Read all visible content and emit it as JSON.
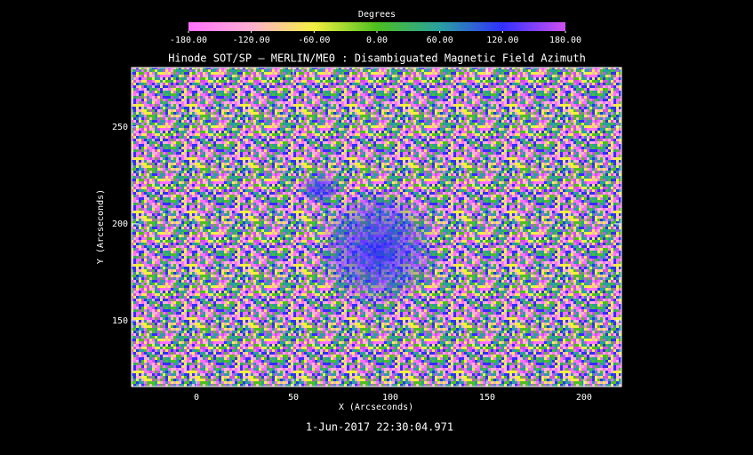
{
  "chart_data": {
    "type": "image",
    "title": "Hinode SOT/SP — MERLIN/ME0 : Disambiguated Magnetic Field Azimuth",
    "xlabel": "X (Arcseconds)",
    "ylabel": "Y (Arcseconds)",
    "xlim": [
      -33.5,
      219.3
    ],
    "ylim": [
      116,
      280.7
    ],
    "xticks": [
      0,
      50,
      100,
      150,
      200
    ],
    "yticks": [
      150,
      200,
      250
    ],
    "timestamp": "1-Jun-2017 22:30:04.971",
    "colorbar": {
      "title": "Degrees",
      "lim": [
        -180,
        180
      ],
      "ticks": [
        {
          "value": -180,
          "label": "-180.00"
        },
        {
          "value": -120,
          "label": "-120.00"
        },
        {
          "value": -60,
          "label": "-60.00"
        },
        {
          "value": 0,
          "label": "0.00"
        },
        {
          "value": 60,
          "label": "60.00"
        },
        {
          "value": 120,
          "label": "120.00"
        },
        {
          "value": 180,
          "label": "180.00"
        }
      ],
      "colormap": [
        "#ff70ff",
        "#ffb0d0",
        "#f4f040",
        "#4cc020",
        "#2aa0a0",
        "#3030ff",
        "#d050f0"
      ]
    }
  }
}
